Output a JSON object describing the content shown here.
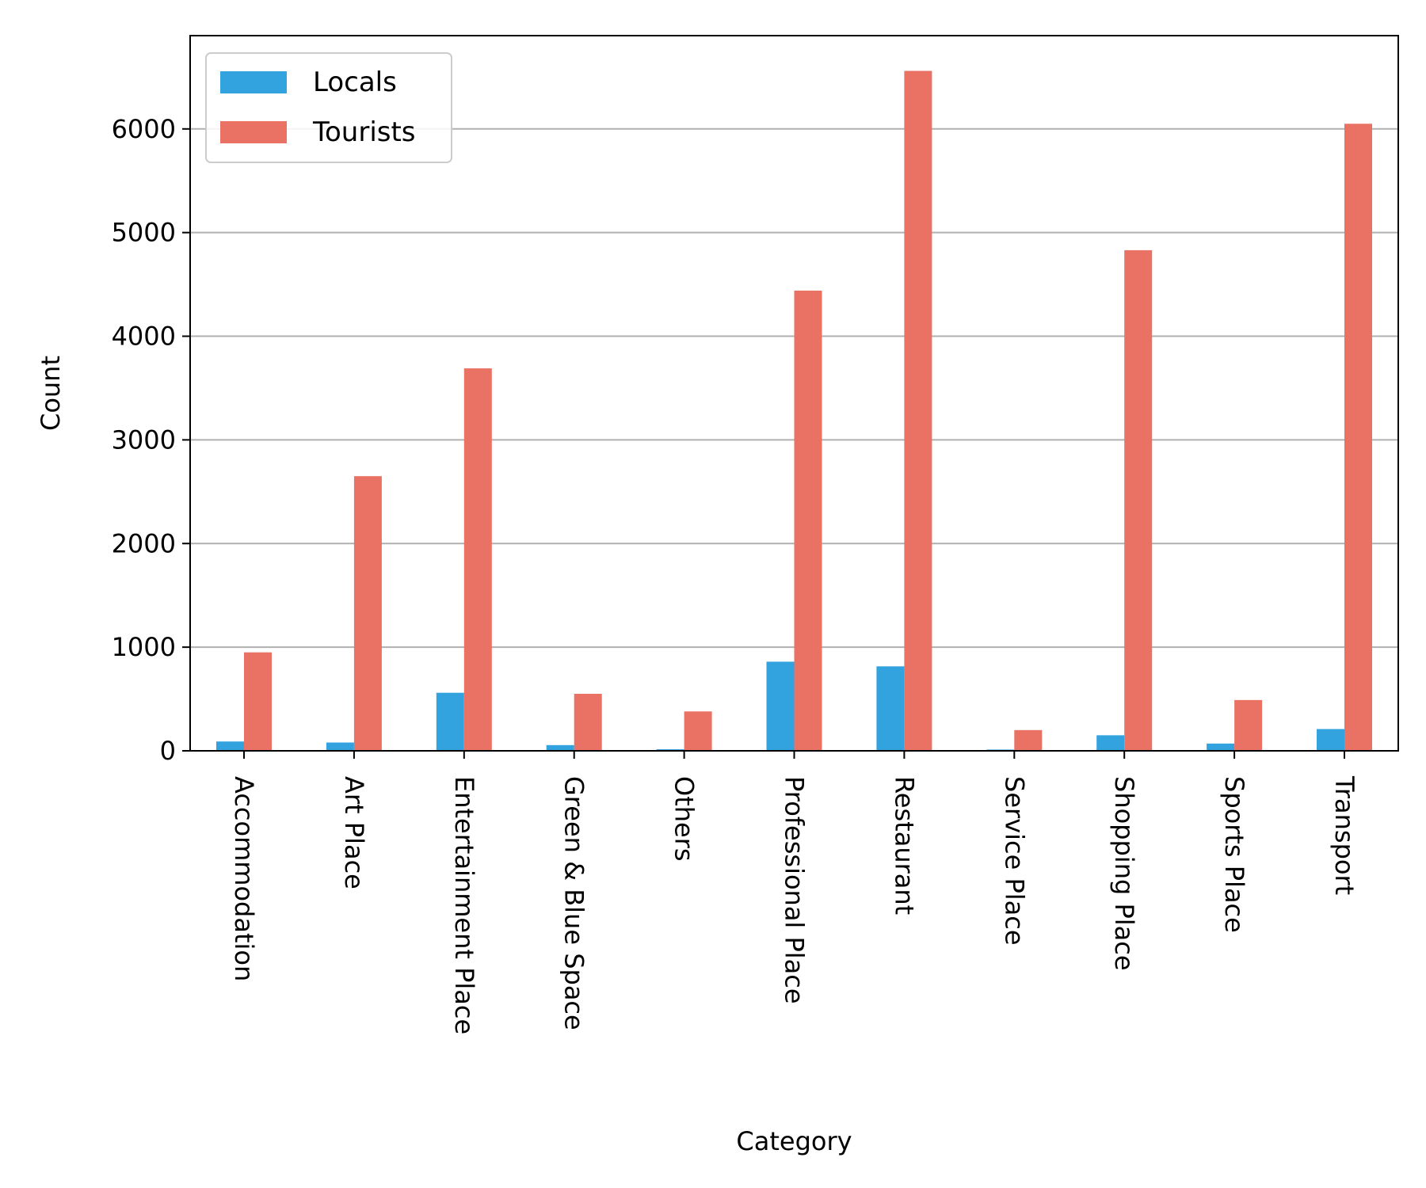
{
  "chart_data": {
    "type": "bar",
    "xlabel": "Category",
    "ylabel": "Count",
    "ylim": [
      0,
      6900
    ],
    "yticks": [
      0,
      1000,
      2000,
      3000,
      4000,
      5000,
      6000
    ],
    "grid": "y",
    "legend_position": "top-left",
    "categories": [
      "Accommodation",
      "Art Place",
      "Entertainment Place",
      "Green & Blue Space",
      "Others",
      "Professional Place",
      "Restaurant",
      "Service Place",
      "Shopping Place",
      "Sports Place",
      "Transport"
    ],
    "series": [
      {
        "name": "Locals",
        "color": "#33a3e0",
        "values": [
          90,
          80,
          560,
          55,
          15,
          860,
          815,
          12,
          150,
          70,
          210
        ]
      },
      {
        "name": "Tourists",
        "color": "#ea7264",
        "values": [
          950,
          2650,
          3690,
          550,
          380,
          4440,
          6560,
          200,
          4830,
          490,
          6050
        ]
      }
    ]
  }
}
